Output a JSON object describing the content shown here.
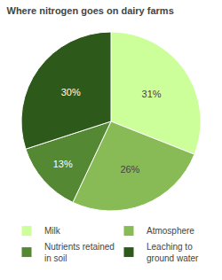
{
  "chart_data": {
    "type": "pie",
    "title": "Where nitrogen goes on dairy farms",
    "categories": [
      "Milk",
      "Atmosphere",
      "Nutrients retained\nin soil",
      "Leaching to\nground water"
    ],
    "values": [
      31,
      26,
      13,
      30
    ],
    "value_labels": [
      "31%",
      "26%",
      "13%",
      "30%"
    ],
    "colors": [
      "#ccff99",
      "#88bb55",
      "#558833",
      "#2d5a1b"
    ],
    "data_labels": true,
    "legend": "bottom"
  }
}
